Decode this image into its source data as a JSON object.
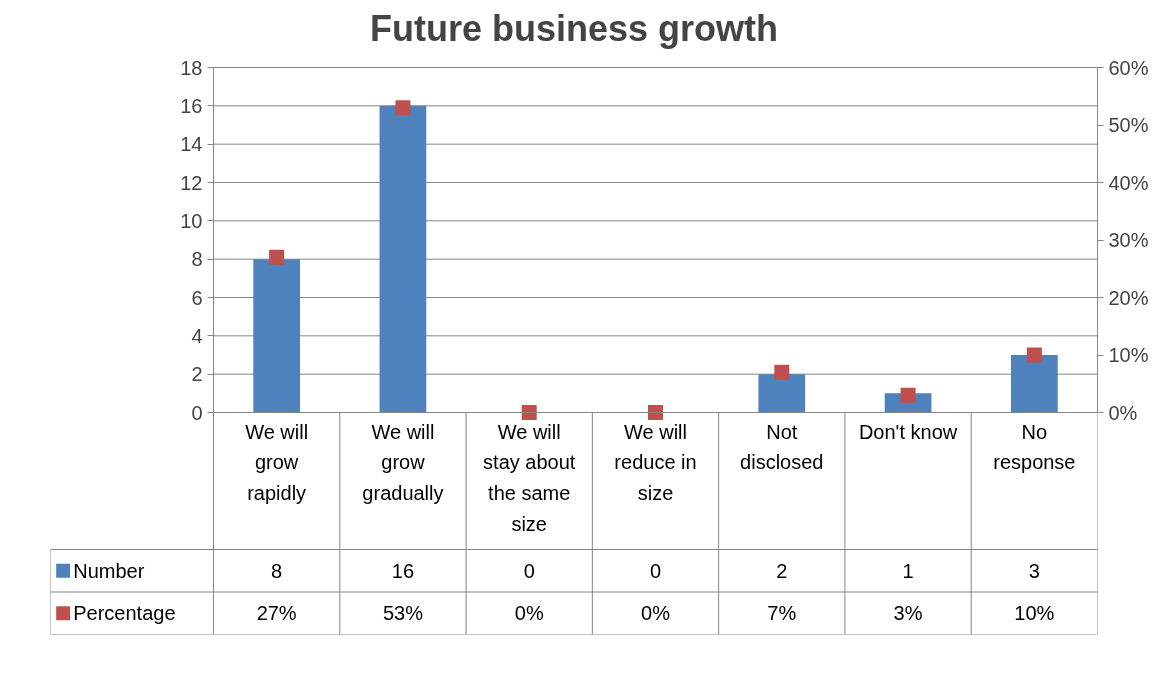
{
  "chart_data": {
    "type": "bar",
    "title": "Future business growth",
    "categories": [
      "We will grow rapidly",
      "We will grow gradually",
      "We will stay about the same size",
      "We will reduce in size",
      "Not disclosed",
      "Don't know",
      "No response"
    ],
    "series": [
      {
        "name": "Number",
        "color": "#4f81bd",
        "values": [
          8,
          16,
          0,
          0,
          2,
          1,
          3
        ],
        "value_labels": [
          "8",
          "16",
          "0",
          "0",
          "2",
          "1",
          "3"
        ]
      },
      {
        "name": "Percentage",
        "type": "scatter",
        "axis": "y2",
        "color": "#c0504d",
        "values": [
          27,
          53,
          0,
          0,
          7,
          3,
          10
        ],
        "value_labels": [
          "27%",
          "53%",
          "0%",
          "0%",
          "7%",
          "3%",
          "10%"
        ]
      }
    ],
    "ylim": [
      0,
      18
    ],
    "yticks": [
      0,
      2,
      4,
      6,
      8,
      10,
      12,
      14,
      16,
      18
    ],
    "y2lim": [
      0,
      60
    ],
    "y2ticks": [
      {
        "value": 0,
        "label": "0%"
      },
      {
        "value": 10,
        "label": "10%"
      },
      {
        "value": 20,
        "label": "20%"
      },
      {
        "value": 30,
        "label": "30%"
      },
      {
        "value": 40,
        "label": "40%"
      },
      {
        "value": 50,
        "label": "50%"
      },
      {
        "value": 60,
        "label": "60%"
      }
    ],
    "grid": "y",
    "legend": "bottom",
    "marker": "square"
  }
}
